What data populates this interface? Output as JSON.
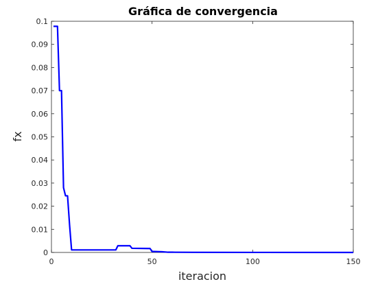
{
  "chart_data": {
    "type": "line",
    "title": "Gráfica de convergencia",
    "xlabel": "iteracion",
    "ylabel": "fx",
    "xlim": [
      0,
      150
    ],
    "ylim": [
      0,
      0.1
    ],
    "grid": false,
    "xticks": [
      0,
      50,
      100,
      150
    ],
    "xtick_labels": [
      "0",
      "50",
      "100",
      "150"
    ],
    "yticks": [
      0,
      0.01,
      0.02,
      0.03,
      0.04,
      0.05,
      0.06,
      0.07,
      0.08,
      0.09,
      0.1
    ],
    "ytick_labels": [
      "0",
      "0.01",
      "0.02",
      "0.03",
      "0.04",
      "0.05",
      "0.06",
      "0.07",
      "0.08",
      "0.09",
      "0.1"
    ],
    "series": [
      {
        "name": "fx",
        "color": "#0000ff",
        "x": [
          1,
          2,
          3,
          4,
          5,
          6,
          7,
          8,
          9,
          10,
          20,
          32,
          33,
          34,
          38,
          39,
          40,
          48,
          49,
          50,
          51,
          55,
          58,
          60,
          70,
          100,
          150
        ],
        "y": [
          0.0978,
          0.0978,
          0.0978,
          0.07,
          0.07,
          0.028,
          0.0245,
          0.0245,
          0.012,
          0.0011,
          0.0011,
          0.0011,
          0.0029,
          0.0029,
          0.0029,
          0.0029,
          0.0018,
          0.0017,
          0.0017,
          0.0004,
          0.0004,
          0.0003,
          0.0001,
          0.0001,
          5e-05,
          2e-05,
          1e-05
        ]
      }
    ]
  }
}
